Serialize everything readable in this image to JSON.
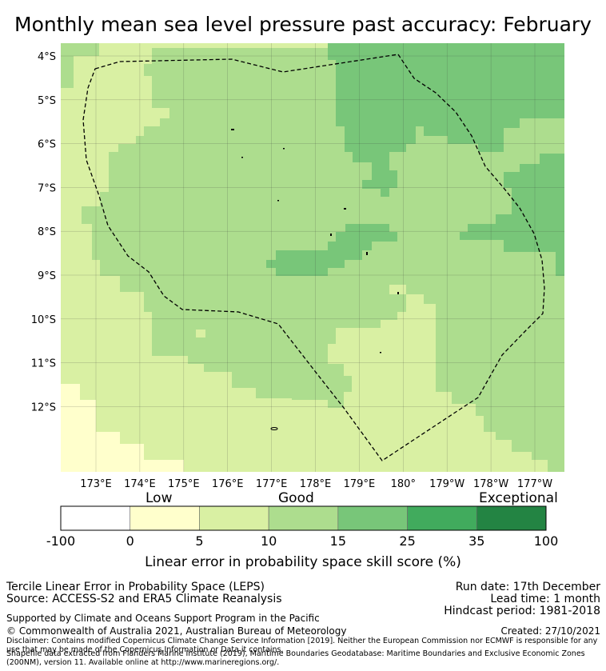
{
  "title": "Monthly mean sea level pressure past accuracy: February",
  "map": {
    "lat_labels": [
      "4°S",
      "5°S",
      "6°S",
      "7°S",
      "8°S",
      "9°S",
      "10°S",
      "11°S",
      "12°S"
    ],
    "lat_values": [
      4,
      5,
      6,
      7,
      8,
      9,
      10,
      11,
      12
    ],
    "lon_labels": [
      "173°E",
      "174°E",
      "175°E",
      "176°E",
      "177°E",
      "178°E",
      "179°E",
      "180°",
      "179°W",
      "178°W",
      "177°W"
    ],
    "lon_values": [
      173,
      174,
      175,
      176,
      177,
      178,
      179,
      180,
      181,
      182,
      183
    ],
    "region_outline": "EEZ boundary (dashed)"
  },
  "colorbar": {
    "category_labels": [
      "Low",
      "Good",
      "Exceptional"
    ],
    "ticks": [
      "-100",
      "0",
      "5",
      "10",
      "15",
      "25",
      "35",
      "100"
    ],
    "bins": [
      {
        "from": -100,
        "to": 0,
        "color": "#ffffff"
      },
      {
        "from": 0,
        "to": 5,
        "color": "#ffffcc"
      },
      {
        "from": 5,
        "to": 10,
        "color": "#d9f0a3"
      },
      {
        "from": 10,
        "to": 15,
        "color": "#addd8e"
      },
      {
        "from": 15,
        "to": 25,
        "color": "#78c679"
      },
      {
        "from": 25,
        "to": 35,
        "color": "#41ab5d"
      },
      {
        "from": 35,
        "to": 100,
        "color": "#238443"
      }
    ],
    "axis_label": "Linear error in probability space skill score (%)"
  },
  "footer": {
    "line1": "Tercile Linear Error in Probability Space (LEPS)",
    "line2": "Source: ACCESS-S2 and ERA5 Climate Reanalysis",
    "run_date": "Run date: 17th December",
    "lead_time": "Lead time: 1 month",
    "hindcast": "Hindcast period: 1981-2018",
    "supported": "Supported by Climate and Oceans Support Program in the Pacific",
    "copyright": "© Commonwealth of Australia 2021, Australian Bureau of Meteorology",
    "created": "Created: 27/10/2021",
    "disclaimer": "Disclaimer: Contains modified Copernicus Climate Change Service Information [2019]. Neither the European Commission nor ECMWF is responsible for any use that may be made of the Copernicus Information or Data it contains.",
    "shapefile": "Shapefile data extracted from Flanders Marine Institute (2019), Maritime Boundaries Geodatabase: Maritime Boundaries and Exclusive Economic Zones (200NM), version 11. Available online at http://www.marineregions.org/."
  }
}
